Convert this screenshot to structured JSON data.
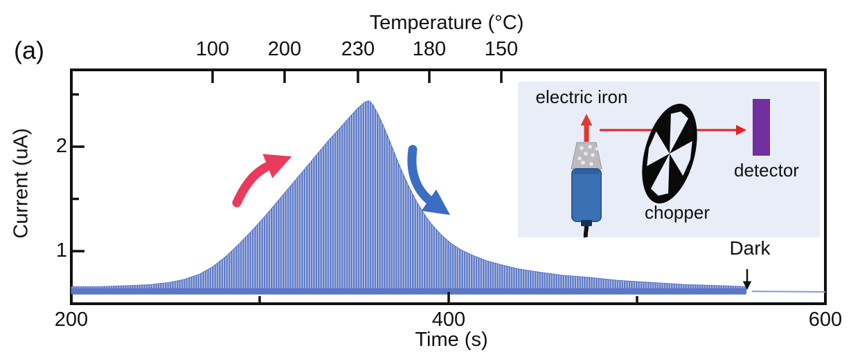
{
  "panel_label": "(a)",
  "chart_data": {
    "type": "line",
    "title": "",
    "description": "Chopped photocurrent of detector while electric-iron heat source heats up and cools down",
    "x_axis": {
      "label": "Time (s)",
      "min": 200,
      "max": 600,
      "major_ticks": [
        {
          "t": 200,
          "label": "200"
        },
        {
          "t": 400,
          "label": "400"
        },
        {
          "t": 600,
          "label": "600"
        }
      ],
      "minor_ticks": [
        300,
        500
      ]
    },
    "y_axis": {
      "label": "Current (uA)",
      "min": 0.49,
      "max": 2.76,
      "major_ticks": [
        {
          "c": 2,
          "label": "2"
        },
        {
          "c": 1,
          "label": "1"
        }
      ],
      "minor_ticks": [
        2.5,
        1.5
      ]
    },
    "top_axis": {
      "label": "Temperature (°C)",
      "ticks": [
        {
          "t": 275,
          "label": "100"
        },
        {
          "t": 313,
          "label": "200"
        },
        {
          "t": 352,
          "label": "230"
        },
        {
          "t": 390,
          "label": "180"
        },
        {
          "t": 428,
          "label": "150"
        }
      ]
    },
    "series": [
      {
        "name": "chopped photocurrent envelope",
        "units": {
          "x": "s",
          "y": "uA"
        },
        "color": "#5b77c5",
        "baseline": 0.6,
        "peak": {
          "t": 357,
          "uA": 2.44
        },
        "points": [
          [
            200,
            0.66
          ],
          [
            215,
            0.66
          ],
          [
            230,
            0.67
          ],
          [
            242,
            0.68
          ],
          [
            252,
            0.7
          ],
          [
            260,
            0.73
          ],
          [
            268,
            0.78
          ],
          [
            275,
            0.85
          ],
          [
            282,
            0.95
          ],
          [
            289,
            1.07
          ],
          [
            296,
            1.2
          ],
          [
            303,
            1.34
          ],
          [
            310,
            1.49
          ],
          [
            317,
            1.64
          ],
          [
            324,
            1.79
          ],
          [
            330,
            1.92
          ],
          [
            336,
            2.05
          ],
          [
            342,
            2.17
          ],
          [
            347,
            2.27
          ],
          [
            352,
            2.37
          ],
          [
            356,
            2.43
          ],
          [
            358,
            2.44
          ],
          [
            360,
            2.4
          ],
          [
            363,
            2.3
          ],
          [
            366,
            2.18
          ],
          [
            369,
            2.05
          ],
          [
            372,
            1.91
          ],
          [
            375,
            1.78
          ],
          [
            379,
            1.62
          ],
          [
            383,
            1.48
          ],
          [
            387,
            1.36
          ],
          [
            391,
            1.26
          ],
          [
            396,
            1.16
          ],
          [
            401,
            1.08
          ],
          [
            407,
            1.01
          ],
          [
            413,
            0.96
          ],
          [
            420,
            0.91
          ],
          [
            428,
            0.87
          ],
          [
            437,
            0.83
          ],
          [
            448,
            0.8
          ],
          [
            460,
            0.77
          ],
          [
            474,
            0.75
          ],
          [
            490,
            0.72
          ],
          [
            508,
            0.7
          ],
          [
            526,
            0.68
          ],
          [
            544,
            0.67
          ],
          [
            558,
            0.66
          ]
        ],
        "dark_segment": [
          [
            561,
            0.615
          ],
          [
            600,
            0.61
          ]
        ]
      }
    ],
    "annotations": {
      "dark": {
        "label": "Dark",
        "t": 560
      },
      "rise_arrow": {
        "meaning": "heating / current increase",
        "color": "#ea3a5e"
      },
      "decay_arrow": {
        "meaning": "cooling / current decrease",
        "color": "#3d6dc2"
      }
    },
    "grid": false,
    "legend": false
  },
  "inset": {
    "background_color": "#e9edf7",
    "labels": {
      "source": "electric iron",
      "chopper": "chopper",
      "detector": "detector"
    },
    "colors": {
      "beam_arrow": "#e02222",
      "iron_handle": "#3b70b4",
      "iron_tip": "#da3b30",
      "chopper_wheel": "#0a0a0a",
      "detector_body": "#7030a0"
    }
  }
}
